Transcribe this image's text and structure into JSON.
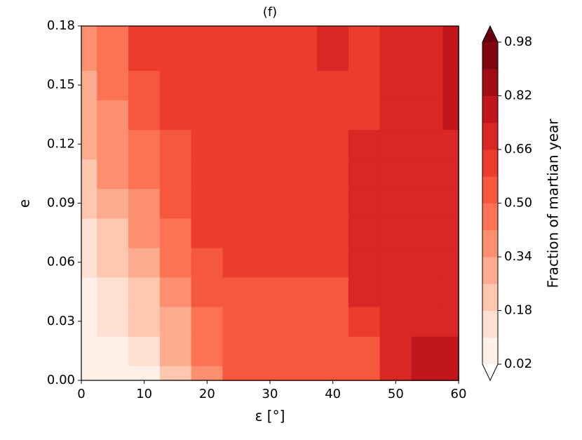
{
  "chart_data": {
    "type": "contourf",
    "title": "(f)",
    "xlabel": "ε [°]",
    "ylabel": "e",
    "colorbar_label": "Fraction of martian year",
    "x": [
      0,
      5,
      10,
      15,
      20,
      25,
      30,
      35,
      40,
      45,
      50,
      55,
      60
    ],
    "y": [
      0,
      0.015,
      0.03,
      0.045,
      0.06,
      0.075,
      0.09,
      0.105,
      0.12,
      0.135,
      0.15,
      0.165,
      0.18
    ],
    "z": [
      [
        0.06,
        0.06,
        0.06,
        0.22,
        0.38,
        0.54,
        0.54,
        0.54,
        0.54,
        0.54,
        0.7,
        0.78,
        0.78
      ],
      [
        0.06,
        0.06,
        0.14,
        0.3,
        0.46,
        0.54,
        0.54,
        0.54,
        0.54,
        0.54,
        0.7,
        0.78,
        0.78
      ],
      [
        0.06,
        0.14,
        0.22,
        0.3,
        0.46,
        0.54,
        0.54,
        0.54,
        0.54,
        0.62,
        0.7,
        0.7,
        0.7
      ],
      [
        0.06,
        0.14,
        0.22,
        0.38,
        0.54,
        0.54,
        0.54,
        0.54,
        0.54,
        0.7,
        0.7,
        0.7,
        0.7
      ],
      [
        0.14,
        0.22,
        0.3,
        0.46,
        0.54,
        0.62,
        0.62,
        0.62,
        0.62,
        0.7,
        0.7,
        0.7,
        0.7
      ],
      [
        0.14,
        0.22,
        0.38,
        0.46,
        0.62,
        0.62,
        0.62,
        0.62,
        0.62,
        0.7,
        0.7,
        0.7,
        0.7
      ],
      [
        0.22,
        0.3,
        0.38,
        0.54,
        0.62,
        0.62,
        0.62,
        0.62,
        0.62,
        0.7,
        0.7,
        0.7,
        0.7
      ],
      [
        0.22,
        0.38,
        0.46,
        0.54,
        0.62,
        0.62,
        0.62,
        0.62,
        0.62,
        0.7,
        0.7,
        0.7,
        0.7
      ],
      [
        0.3,
        0.38,
        0.46,
        0.54,
        0.62,
        0.62,
        0.62,
        0.62,
        0.62,
        0.7,
        0.7,
        0.7,
        0.7
      ],
      [
        0.3,
        0.38,
        0.54,
        0.62,
        0.62,
        0.62,
        0.62,
        0.62,
        0.62,
        0.62,
        0.7,
        0.7,
        0.78
      ],
      [
        0.3,
        0.46,
        0.54,
        0.62,
        0.62,
        0.62,
        0.62,
        0.62,
        0.62,
        0.62,
        0.7,
        0.7,
        0.78
      ],
      [
        0.38,
        0.46,
        0.62,
        0.62,
        0.62,
        0.62,
        0.62,
        0.62,
        0.7,
        0.62,
        0.7,
        0.7,
        0.78
      ],
      [
        0.38,
        0.46,
        0.62,
        0.62,
        0.62,
        0.62,
        0.62,
        0.62,
        0.7,
        0.62,
        0.7,
        0.7,
        0.78
      ]
    ],
    "levels": [
      0.02,
      0.1,
      0.18,
      0.26,
      0.34,
      0.42,
      0.5,
      0.58,
      0.66,
      0.74,
      0.82,
      0.9,
      0.98
    ],
    "colors": [
      "#fff0e8",
      "#fee0d2",
      "#fcc7ae",
      "#fcab8f",
      "#fc8f6f",
      "#fb7353",
      "#f6583e",
      "#eb3c2d",
      "#d92723",
      "#c1161b",
      "#a10d15",
      "#7f0610"
    ],
    "under_color": "#ffffff",
    "over_color": "#67000d",
    "xlim": [
      0,
      60
    ],
    "ylim": [
      0,
      0.18
    ],
    "xticks": [
      0,
      10,
      20,
      30,
      40,
      50,
      60
    ],
    "yticks": [
      {
        "value": 0,
        "label": "0.00"
      },
      0.03,
      0.06,
      0.09,
      0.12,
      0.15,
      0.18
    ],
    "cticks": [
      0.02,
      0.18,
      0.34,
      {
        "value": 0.5,
        "label": "0.50"
      },
      0.66,
      0.82,
      0.98
    ]
  }
}
